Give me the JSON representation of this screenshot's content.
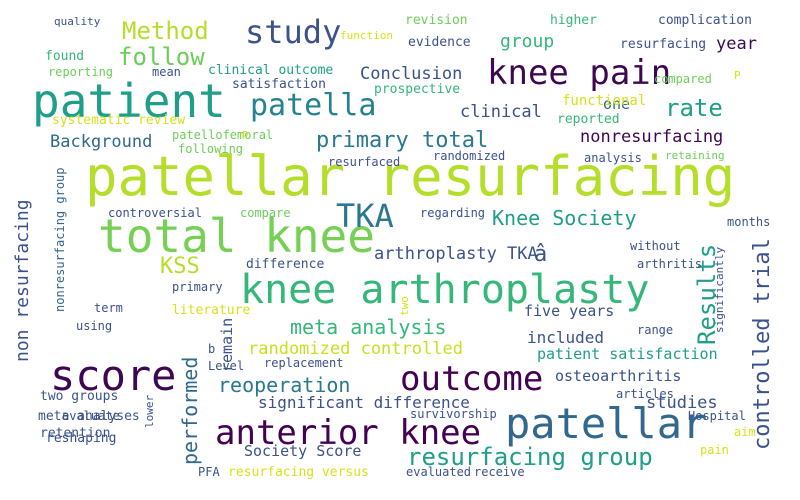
{
  "words": [
    {
      "text": "patellar resurfacing",
      "color": "#b5de2b"
    },
    {
      "text": "total knee",
      "color": "#75d054"
    },
    {
      "text": "patient",
      "color": "#1f9e89"
    },
    {
      "text": "knee arthroplasty",
      "color": "#35b779"
    },
    {
      "text": "score",
      "color": "#3e0751"
    },
    {
      "text": "patellar",
      "color": "#31688e"
    },
    {
      "text": "anterior knee",
      "color": "#440154"
    },
    {
      "text": "knee pain",
      "color": "#3e0751"
    },
    {
      "text": "outcome",
      "color": "#440154"
    },
    {
      "text": "patella",
      "color": "#26828e"
    },
    {
      "text": "study",
      "color": "#3b528b"
    },
    {
      "text": "TKA",
      "color": "#2a788e"
    },
    {
      "text": "resurfacing group",
      "color": "#1f9e89"
    },
    {
      "text": "Method",
      "color": "#b5de2b"
    },
    {
      "text": "follow",
      "color": "#6ccd5a"
    },
    {
      "text": "Results",
      "color": "#1f9e89"
    },
    {
      "text": "controlled trial",
      "color": "#3b528b"
    },
    {
      "text": "rate",
      "color": "#1f9e89"
    },
    {
      "text": "primary total",
      "color": "#2a788e"
    },
    {
      "text": "Knee Society",
      "color": "#1f9e89"
    },
    {
      "text": "KSS",
      "color": "#b5de2b"
    },
    {
      "text": "performed",
      "color": "#31688e"
    },
    {
      "text": "reoperation",
      "color": "#2a788e"
    },
    {
      "text": "meta analysis",
      "color": "#35b779"
    },
    {
      "text": "non resurfacing",
      "color": "#3b528b"
    },
    {
      "text": "Conclusion",
      "color": "#3b528b"
    },
    {
      "text": "arthroplasty TKA",
      "color": "#3b528b"
    },
    {
      "text": "clinical",
      "color": "#3b528b"
    },
    {
      "text": "randomized controlled",
      "color": "#c8e020"
    },
    {
      "text": "significant difference",
      "color": "#3b528b"
    },
    {
      "text": "Background",
      "color": "#31688e"
    },
    {
      "text": "nonresurfacing",
      "color": "#3e0751"
    },
    {
      "text": "studies",
      "color": "#3b528b"
    },
    {
      "text": "group",
      "color": "#35b779"
    },
    {
      "text": "year",
      "color": "#3e0751"
    },
    {
      "text": "included",
      "color": "#3b528b"
    },
    {
      "text": "patient satisfaction",
      "color": "#1f9e89"
    },
    {
      "text": "Society Score",
      "color": "#3b528b"
    },
    {
      "text": "remain",
      "color": "#3b528b"
    },
    {
      "text": "five years",
      "color": "#3b528b"
    },
    {
      "text": "osteoarthritis",
      "color": "#3b528b"
    },
    {
      "text": "one",
      "color": "#31688e"
    },
    {
      "text": "functional",
      "color": "#d8e219"
    },
    {
      "text": "nonresurfacing group",
      "color": "#31688e"
    },
    {
      "text": "clinical outcome",
      "color": "#1f9e89"
    },
    {
      "text": "systematic review",
      "color": "#d8e219"
    },
    {
      "text": "evidence",
      "color": "#3b528b"
    },
    {
      "text": "two groups",
      "color": "#3b528b"
    },
    {
      "text": "resurfacing versus",
      "color": "#d8e219"
    },
    {
      "text": "literature",
      "color": "#d8e219"
    },
    {
      "text": "revision",
      "color": "#6ccd5a"
    },
    {
      "text": "higher",
      "color": "#35b779"
    },
    {
      "text": "complication",
      "color": "#3b528b"
    },
    {
      "text": "resurfacing",
      "color": "#3b528b"
    },
    {
      "text": "found",
      "color": "#35b779"
    },
    {
      "text": "mean",
      "color": "#3b528b"
    },
    {
      "text": "reporting",
      "color": "#6ccd5a"
    },
    {
      "text": "satisfaction",
      "color": "#3b528b"
    },
    {
      "text": "prospective",
      "color": "#35b779"
    },
    {
      "text": "reported",
      "color": "#35b779"
    },
    {
      "text": "compared",
      "color": "#6ccd5a"
    },
    {
      "text": "patellofemoral",
      "color": "#6ccd5a"
    },
    {
      "text": "following",
      "color": "#6ccd5a"
    },
    {
      "text": "resurfaced",
      "color": "#3b528b"
    },
    {
      "text": "randomized",
      "color": "#3b528b"
    },
    {
      "text": "analysis",
      "color": "#3b528b"
    },
    {
      "text": "retaining",
      "color": "#6ccd5a"
    },
    {
      "text": "controversial",
      "color": "#3b528b"
    },
    {
      "text": "compare",
      "color": "#6ccd5a"
    },
    {
      "text": "regarding",
      "color": "#3b528b"
    },
    {
      "text": "difference",
      "color": "#3b528b"
    },
    {
      "text": "without",
      "color": "#3b528b"
    },
    {
      "text": "arthritis",
      "color": "#3b528b"
    },
    {
      "text": "months",
      "color": "#3b528b"
    },
    {
      "text": "primary",
      "color": "#3b528b"
    },
    {
      "text": "term",
      "color": "#3b528b"
    },
    {
      "text": "using",
      "color": "#3b528b"
    },
    {
      "text": "retention",
      "color": "#3b528b"
    },
    {
      "text": "meta analyses",
      "color": "#3b528b"
    },
    {
      "text": "reshaping",
      "color": "#3b528b"
    },
    {
      "text": "evaluate",
      "color": "#3b528b"
    },
    {
      "text": "Level",
      "color": "#3b528b"
    },
    {
      "text": "replacement",
      "color": "#3b528b"
    },
    {
      "text": "b",
      "color": "#3b528b"
    },
    {
      "text": "survivorship",
      "color": "#3b528b"
    },
    {
      "text": "articles",
      "color": "#3b528b"
    },
    {
      "text": "range",
      "color": "#3b528b"
    },
    {
      "text": "Hospital",
      "color": "#3b528b"
    },
    {
      "text": "aim",
      "color": "#d8e219"
    },
    {
      "text": "pain",
      "color": "#d8e219"
    },
    {
      "text": "PFA",
      "color": "#3b528b"
    },
    {
      "text": "evaluated",
      "color": "#3b528b"
    },
    {
      "text": "receive",
      "color": "#3b528b"
    },
    {
      "text": "quality",
      "color": "#3b528b"
    },
    {
      "text": "function",
      "color": "#d8e219"
    },
    {
      "text": "lower",
      "color": "#3b528b"
    },
    {
      "text": "two",
      "color": "#d8e219"
    },
    {
      "text": "significantly",
      "color": "#3b528b"
    },
    {
      "text": "â",
      "color": "#3b528b"
    },
    {
      "text": "p",
      "color": "#d8e219"
    },
    {
      "text": "P",
      "color": "#d8e219"
    }
  ]
}
